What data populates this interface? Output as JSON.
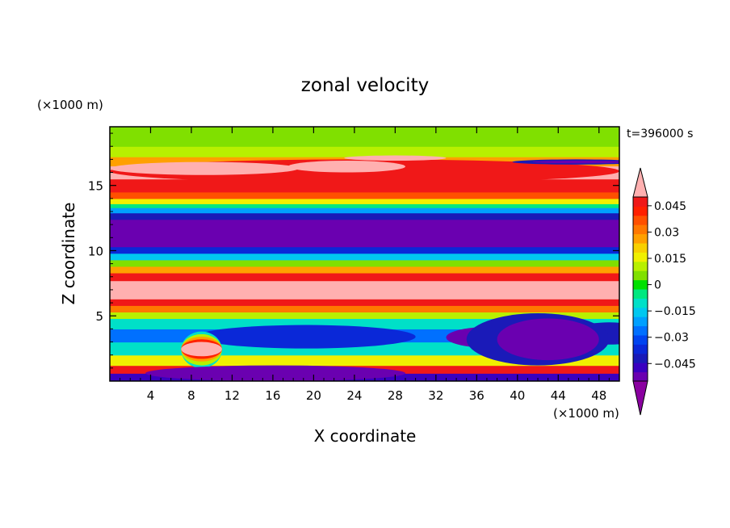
{
  "chart_data": {
    "type": "heatmap",
    "title": "zonal velocity",
    "xlabel": "X coordinate",
    "ylabel": "Z coordinate",
    "x_unit": "(×1000 m)",
    "y_unit": "(×1000 m)",
    "time_label": "t=396000 s",
    "xlim": [
      0,
      50
    ],
    "ylim": [
      0,
      19.5
    ],
    "xticks": [
      4,
      8,
      12,
      16,
      20,
      24,
      28,
      32,
      36,
      40,
      44,
      48
    ],
    "yticks": [
      5,
      10,
      15
    ],
    "colorbar": {
      "levels": [
        -0.06,
        -0.055,
        -0.05,
        -0.045,
        -0.04,
        -0.035,
        -0.03,
        -0.025,
        -0.02,
        -0.015,
        -0.01,
        -0.005,
        0,
        0.005,
        0.01,
        0.015,
        0.02,
        0.025,
        0.03,
        0.035,
        0.04,
        0.045,
        0.05,
        0.055
      ],
      "colors": [
        "#8a00a0",
        "#6a00b0",
        "#3a00c0",
        "#1a1ab8",
        "#0a28d8",
        "#0044f0",
        "#0070ff",
        "#00a0ff",
        "#00c8f0",
        "#00e0c8",
        "#00e880",
        "#00e000",
        "#80e000",
        "#b8f000",
        "#f0f000",
        "#f8d000",
        "#ffa000",
        "#ff7800",
        "#ff5000",
        "#ff2000",
        "#f01818",
        "#ffb0b0"
      ],
      "tick_labels": [
        "0.045",
        "0.03",
        "0.015",
        "0",
        "−0.015",
        "−0.03",
        "−0.045"
      ],
      "tick_values": [
        0.045,
        0.03,
        0.015,
        0,
        -0.015,
        -0.03,
        -0.045
      ],
      "extend": "both"
    },
    "bands": [
      {
        "z": [
          0.0,
          0.6
        ],
        "v": -0.05
      },
      {
        "z": [
          0.6,
          1.2
        ],
        "v": 0.04
      },
      {
        "z": [
          1.2,
          2.0
        ],
        "v": 0.01
      },
      {
        "z": [
          2.0,
          3.0
        ],
        "v": -0.015
      },
      {
        "z": [
          3.0,
          4.0
        ],
        "v": -0.03
      },
      {
        "z": [
          4.0,
          4.8
        ],
        "v": -0.015
      },
      {
        "z": [
          4.8,
          5.3
        ],
        "v": 0.005
      },
      {
        "z": [
          5.3,
          5.8
        ],
        "v": 0.025
      },
      {
        "z": [
          5.8,
          6.3
        ],
        "v": 0.04
      },
      {
        "z": [
          6.3,
          7.7
        ],
        "v": 0.05
      },
      {
        "z": [
          7.7,
          8.3
        ],
        "v": 0.04
      },
      {
        "z": [
          8.3,
          8.8
        ],
        "v": 0.02
      },
      {
        "z": [
          8.8,
          9.3
        ],
        "v": 0.0
      },
      {
        "z": [
          9.3,
          9.8
        ],
        "v": -0.02
      },
      {
        "z": [
          9.8,
          10.3
        ],
        "v": -0.04
      },
      {
        "z": [
          10.3,
          12.4
        ],
        "v": -0.055
      },
      {
        "z": [
          12.4,
          12.9
        ],
        "v": -0.045
      },
      {
        "z": [
          12.9,
          13.3
        ],
        "v": -0.025
      },
      {
        "z": [
          13.3,
          13.6
        ],
        "v": -0.01
      },
      {
        "z": [
          13.6,
          14.0
        ],
        "v": 0.01
      },
      {
        "z": [
          14.0,
          14.5
        ],
        "v": 0.03
      },
      {
        "z": [
          14.5,
          15.5
        ],
        "v": 0.04
      },
      {
        "z": [
          15.5,
          16.5
        ],
        "v": 0.045
      },
      {
        "z": [
          16.5,
          17.2
        ],
        "v": 0.02
      },
      {
        "z": [
          17.2,
          18.0
        ],
        "v": 0.005
      },
      {
        "z": [
          18.0,
          19.5
        ],
        "v": 0.0
      }
    ],
    "features": [
      {
        "x": [
          8.5,
          30
        ],
        "z": [
          2.5,
          4.3
        ],
        "v": -0.04
      },
      {
        "x": [
          45,
          53
        ],
        "z": [
          2.8,
          4.5
        ],
        "v": -0.045
      },
      {
        "x": [
          33,
          43
        ],
        "z": [
          2.5,
          4.2
        ],
        "v": -0.055
      },
      {
        "x": [
          21,
          33
        ],
        "z": [
          11,
          11.5
        ],
        "v": -0.055
      },
      {
        "x": [
          7,
          11
        ],
        "z": [
          1.0,
          3.8
        ],
        "v": -0.015
      },
      {
        "x": [
          7,
          11
        ],
        "z": [
          1.2,
          3.6
        ],
        "v": 0.005
      },
      {
        "x": [
          7,
          11
        ],
        "z": [
          1.5,
          3.4
        ],
        "v": 0.02
      },
      {
        "x": [
          7,
          11
        ],
        "z": [
          1.7,
          3.2
        ],
        "v": 0.035
      },
      {
        "x": [
          7,
          11
        ],
        "z": [
          1.9,
          3.0
        ],
        "v": 0.05
      },
      {
        "x": [
          35,
          49
        ],
        "z": [
          1.2,
          5.2
        ],
        "v": -0.045
      },
      {
        "x": [
          38,
          48
        ],
        "z": [
          1.6,
          4.8
        ],
        "v": -0.055
      },
      {
        "x": [
          3.5,
          29
        ],
        "z": [
          0.0,
          1.2
        ],
        "v": -0.055
      },
      {
        "x": [
          0,
          50
        ],
        "z": [
          15.2,
          17.0
        ],
        "v": 0.04
      },
      {
        "x": [
          0,
          18.5
        ],
        "z": [
          15.8,
          16.8
        ],
        "v": 0.05
      },
      {
        "x": [
          17.5,
          29
        ],
        "z": [
          16.0,
          16.9
        ],
        "v": 0.05
      },
      {
        "x": [
          23,
          33
        ],
        "z": [
          16.9,
          17.3
        ],
        "v": 0.05
      },
      {
        "x": [
          39.5,
          52
        ],
        "z": [
          16.6,
          17.0
        ],
        "v": -0.045
      },
      {
        "x": [
          41.5,
          51
        ],
        "z": [
          16.7,
          16.9
        ],
        "v": -0.055
      }
    ]
  }
}
